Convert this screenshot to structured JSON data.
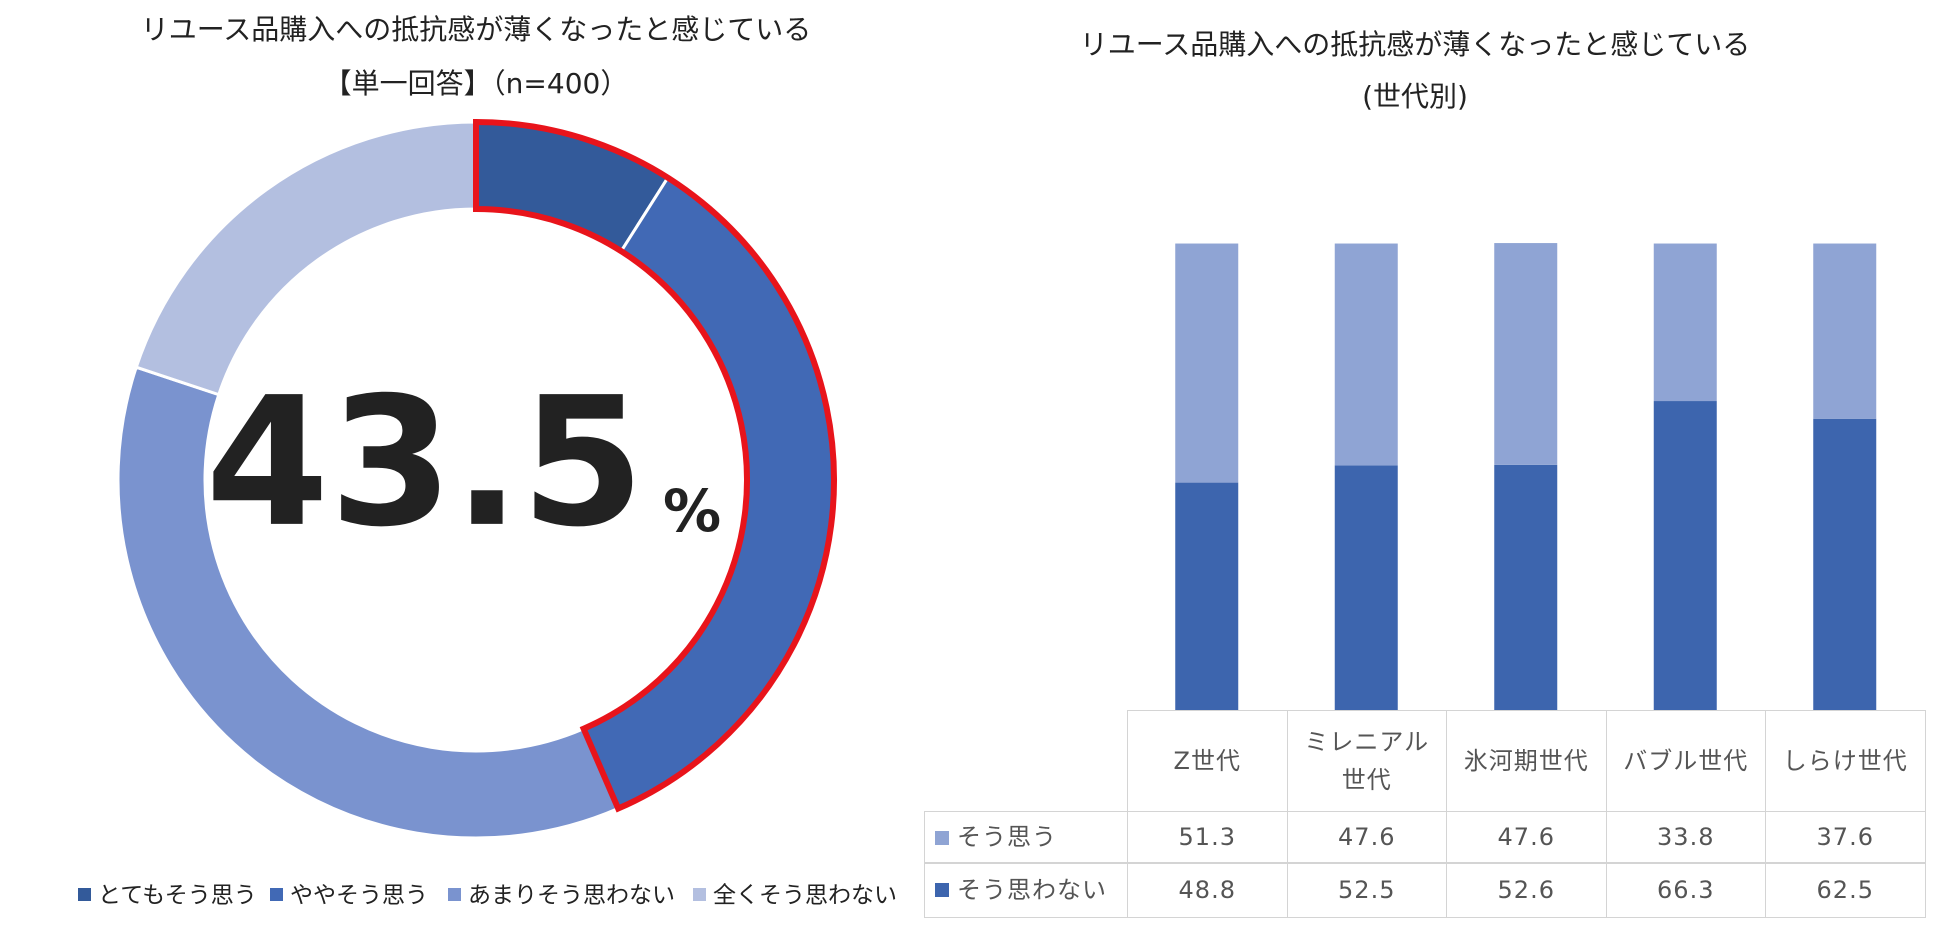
{
  "chart_data": [
    {
      "type": "donut",
      "title": [
        "リユース品購入への抵抗感が薄くなったと感じている",
        "【単一回答】（n=400）"
      ],
      "center_value": "43.5",
      "center_unit": "%",
      "categories": [
        "とてもそう思う",
        "ややそう思う",
        "あまりそう思わない",
        "全くそう思わない"
      ],
      "values": [
        9.0,
        34.5,
        36.6,
        19.9
      ],
      "colors": [
        "#335a9a",
        "#4169b5",
        "#7a93cf",
        "#b3bfe0"
      ],
      "highlight_color": "#e8141b"
    },
    {
      "type": "stacked_bar",
      "title": [
        "リユース品購入への抵抗感が薄くなったと感じている",
        "(世代別)"
      ],
      "categories": [
        "Z世代",
        "ミレニアル世代",
        "氷河期世代",
        "バブル世代",
        "しらけ世代"
      ],
      "series": [
        {
          "name": "そう思う",
          "color": "#8fa4d4",
          "values": [
            51.3,
            47.6,
            47.6,
            33.8,
            37.6
          ]
        },
        {
          "name": "そう思わない",
          "color": "#3d65ae",
          "values": [
            48.8,
            52.5,
            52.6,
            66.3,
            62.5
          ]
        }
      ],
      "ylim": [
        0,
        100
      ]
    }
  ]
}
